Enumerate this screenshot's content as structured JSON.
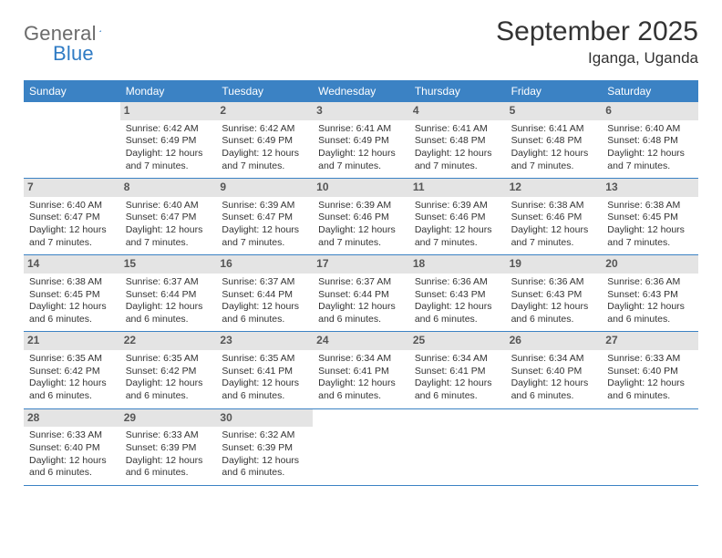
{
  "brand": {
    "part1": "General",
    "part2": "Blue"
  },
  "title": "September 2025",
  "location": "Iganga, Uganda",
  "colors": {
    "header_bg": "#3b82c4",
    "header_text": "#ffffff",
    "daynum_bg": "#e4e4e4",
    "daynum_text": "#555555",
    "text": "#333333",
    "divider": "#3b82c4",
    "logo_gray": "#6b6b6b",
    "logo_blue": "#2f7bc4"
  },
  "dayNames": [
    "Sunday",
    "Monday",
    "Tuesday",
    "Wednesday",
    "Thursday",
    "Friday",
    "Saturday"
  ],
  "weeks": [
    [
      null,
      {
        "d": "1",
        "sr": "6:42 AM",
        "ss": "6:49 PM",
        "dl": "12 hours and 7 minutes."
      },
      {
        "d": "2",
        "sr": "6:42 AM",
        "ss": "6:49 PM",
        "dl": "12 hours and 7 minutes."
      },
      {
        "d": "3",
        "sr": "6:41 AM",
        "ss": "6:49 PM",
        "dl": "12 hours and 7 minutes."
      },
      {
        "d": "4",
        "sr": "6:41 AM",
        "ss": "6:48 PM",
        "dl": "12 hours and 7 minutes."
      },
      {
        "d": "5",
        "sr": "6:41 AM",
        "ss": "6:48 PM",
        "dl": "12 hours and 7 minutes."
      },
      {
        "d": "6",
        "sr": "6:40 AM",
        "ss": "6:48 PM",
        "dl": "12 hours and 7 minutes."
      }
    ],
    [
      {
        "d": "7",
        "sr": "6:40 AM",
        "ss": "6:47 PM",
        "dl": "12 hours and 7 minutes."
      },
      {
        "d": "8",
        "sr": "6:40 AM",
        "ss": "6:47 PM",
        "dl": "12 hours and 7 minutes."
      },
      {
        "d": "9",
        "sr": "6:39 AM",
        "ss": "6:47 PM",
        "dl": "12 hours and 7 minutes."
      },
      {
        "d": "10",
        "sr": "6:39 AM",
        "ss": "6:46 PM",
        "dl": "12 hours and 7 minutes."
      },
      {
        "d": "11",
        "sr": "6:39 AM",
        "ss": "6:46 PM",
        "dl": "12 hours and 7 minutes."
      },
      {
        "d": "12",
        "sr": "6:38 AM",
        "ss": "6:46 PM",
        "dl": "12 hours and 7 minutes."
      },
      {
        "d": "13",
        "sr": "6:38 AM",
        "ss": "6:45 PM",
        "dl": "12 hours and 7 minutes."
      }
    ],
    [
      {
        "d": "14",
        "sr": "6:38 AM",
        "ss": "6:45 PM",
        "dl": "12 hours and 6 minutes."
      },
      {
        "d": "15",
        "sr": "6:37 AM",
        "ss": "6:44 PM",
        "dl": "12 hours and 6 minutes."
      },
      {
        "d": "16",
        "sr": "6:37 AM",
        "ss": "6:44 PM",
        "dl": "12 hours and 6 minutes."
      },
      {
        "d": "17",
        "sr": "6:37 AM",
        "ss": "6:44 PM",
        "dl": "12 hours and 6 minutes."
      },
      {
        "d": "18",
        "sr": "6:36 AM",
        "ss": "6:43 PM",
        "dl": "12 hours and 6 minutes."
      },
      {
        "d": "19",
        "sr": "6:36 AM",
        "ss": "6:43 PM",
        "dl": "12 hours and 6 minutes."
      },
      {
        "d": "20",
        "sr": "6:36 AM",
        "ss": "6:43 PM",
        "dl": "12 hours and 6 minutes."
      }
    ],
    [
      {
        "d": "21",
        "sr": "6:35 AM",
        "ss": "6:42 PM",
        "dl": "12 hours and 6 minutes."
      },
      {
        "d": "22",
        "sr": "6:35 AM",
        "ss": "6:42 PM",
        "dl": "12 hours and 6 minutes."
      },
      {
        "d": "23",
        "sr": "6:35 AM",
        "ss": "6:41 PM",
        "dl": "12 hours and 6 minutes."
      },
      {
        "d": "24",
        "sr": "6:34 AM",
        "ss": "6:41 PM",
        "dl": "12 hours and 6 minutes."
      },
      {
        "d": "25",
        "sr": "6:34 AM",
        "ss": "6:41 PM",
        "dl": "12 hours and 6 minutes."
      },
      {
        "d": "26",
        "sr": "6:34 AM",
        "ss": "6:40 PM",
        "dl": "12 hours and 6 minutes."
      },
      {
        "d": "27",
        "sr": "6:33 AM",
        "ss": "6:40 PM",
        "dl": "12 hours and 6 minutes."
      }
    ],
    [
      {
        "d": "28",
        "sr": "6:33 AM",
        "ss": "6:40 PM",
        "dl": "12 hours and 6 minutes."
      },
      {
        "d": "29",
        "sr": "6:33 AM",
        "ss": "6:39 PM",
        "dl": "12 hours and 6 minutes."
      },
      {
        "d": "30",
        "sr": "6:32 AM",
        "ss": "6:39 PM",
        "dl": "12 hours and 6 minutes."
      },
      null,
      null,
      null,
      null
    ]
  ],
  "labels": {
    "sunrise": "Sunrise:",
    "sunset": "Sunset:",
    "daylight": "Daylight:"
  }
}
